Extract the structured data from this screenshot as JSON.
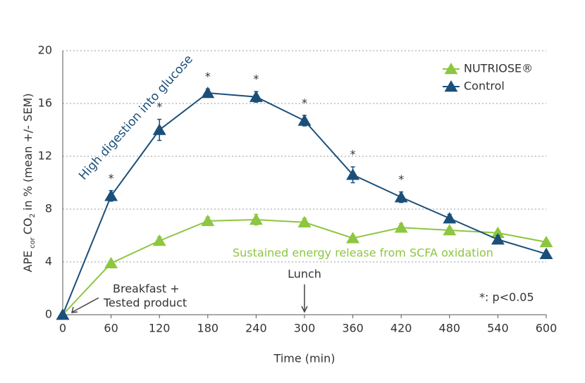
{
  "chart_data": {
    "type": "line",
    "y_label_parts": [
      "APE",
      "cor",
      "CO",
      "2",
      "in % (mean +/- SEM)"
    ],
    "x_label": "Time (min)",
    "x": [
      0,
      60,
      120,
      180,
      240,
      300,
      360,
      420,
      480,
      540,
      600
    ],
    "xlim": [
      0,
      600
    ],
    "xticks": [
      0,
      60,
      120,
      180,
      240,
      300,
      360,
      420,
      480,
      540,
      600
    ],
    "ylim": [
      0,
      20
    ],
    "yticks": [
      0,
      4,
      8,
      12,
      16,
      20
    ],
    "grid": true,
    "legend": "top-right",
    "series": [
      {
        "name": "NUTRIOSE®",
        "color": "#8dc63f",
        "values": [
          0,
          3.9,
          5.6,
          7.1,
          7.2,
          7.0,
          5.8,
          6.6,
          6.4,
          6.2,
          5.5
        ],
        "error": [
          0,
          0.2,
          0.3,
          0.3,
          0.4,
          0.3,
          0.2,
          0.3,
          0.2,
          0.2,
          0.2
        ]
      },
      {
        "name": "Control",
        "color": "#1a4f7a",
        "values": [
          0,
          9.0,
          14.0,
          16.8,
          16.5,
          14.7,
          10.6,
          8.9,
          7.3,
          5.7,
          4.6
        ],
        "error": [
          0,
          0.4,
          0.8,
          0.3,
          0.4,
          0.4,
          0.6,
          0.4,
          0.3,
          0.3,
          0.2
        ]
      }
    ],
    "significance": {
      "label": "*",
      "x": [
        60,
        120,
        180,
        240,
        300,
        360,
        420
      ]
    },
    "significance_note": "*: p<0.05",
    "annotation_control": "High digestion into glucose",
    "annotation_nutriose": "Sustained energy release from SCFA oxidation",
    "event_breakfast": {
      "lines": [
        "Breakfast +",
        "Tested product"
      ],
      "x": 0
    },
    "event_lunch": {
      "text": "Lunch",
      "x": 300
    }
  }
}
